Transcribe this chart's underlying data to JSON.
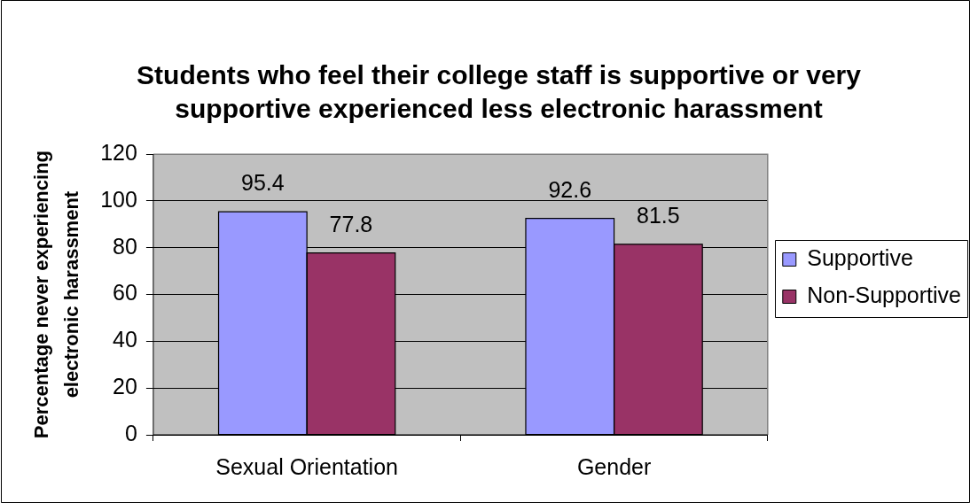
{
  "chart_data": {
    "type": "bar",
    "title": "Students who feel their college staff is supportive or very supportive experienced less electronic harassment",
    "ylabel": "Percentage never experiencing electronic harassment",
    "categories": [
      "Sexual Orientation",
      "Gender"
    ],
    "series": [
      {
        "name": "Supportive",
        "color": "#9999ff",
        "values": [
          95.4,
          92.6
        ]
      },
      {
        "name": "Non-Supportive",
        "color": "#993366",
        "values": [
          77.8,
          81.5
        ]
      }
    ],
    "ylim": [
      0,
      120
    ],
    "yticks": [
      0,
      20,
      40,
      60,
      80,
      100,
      120
    ],
    "grid": "y",
    "legend": "right",
    "data_labels": true
  }
}
